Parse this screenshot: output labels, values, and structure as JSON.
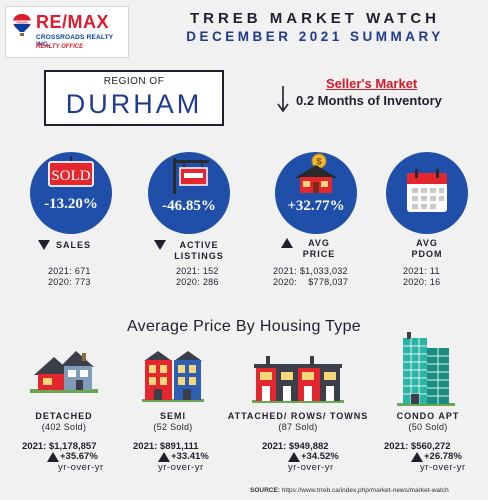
{
  "brand": {
    "name": "RE/MAX",
    "balloon_text": "RE/MAX",
    "office_name": "CROSSROADS REALTY INC.",
    "tagline": "REALTY OFFICE",
    "colors": {
      "red": "#dc1c2e",
      "blue": "#003da5"
    }
  },
  "header": {
    "title": "TRREB MARKET WATCH",
    "subtitle": "DECEMBER 2021 SUMMARY"
  },
  "region": {
    "label": "REGION OF",
    "name": "DURHAM"
  },
  "market": {
    "type": "Seller's Market",
    "inventory_direction": "down",
    "inventory": "0.2 Months of Inventory"
  },
  "stats": [
    {
      "icon": "sold-sign-icon",
      "sign_text": "SOLD",
      "value": "-13.20%",
      "direction": "down",
      "label": "SALES",
      "line_2021": "2021: 671",
      "line_2020": "2020: 773"
    },
    {
      "icon": "listing-sign-icon",
      "value": "-46.85%",
      "direction": "down",
      "label": "ACTIVE LISTINGS",
      "line_2021": "2021: 152",
      "line_2020": "2020: 286"
    },
    {
      "icon": "house-dollar-icon",
      "value": "+32.77%",
      "direction": "up",
      "label": "AVG PRICE",
      "line_2021": "2021: $1,033,032",
      "line_2020": "2020:    $778,037"
    },
    {
      "icon": "calendar-icon",
      "value": "",
      "direction": "none",
      "label": "AVG PDOM",
      "line_2021": "2021: 11",
      "line_2020": "2020: 16"
    }
  ],
  "housing": {
    "title": "Average Price By Housing Type",
    "types": [
      {
        "icon": "detached-house-icon",
        "name": "DETACHED",
        "sold": "(402 Sold)",
        "price": "2021: $1,178,857",
        "change": "+35.67%",
        "yoy": "yr-over-yr"
      },
      {
        "icon": "semi-house-icon",
        "name": "SEMI",
        "sold": "(52 Sold)",
        "price": "2021: $891,111",
        "change": "+33.41%",
        "yoy": "yr-over-yr"
      },
      {
        "icon": "townhouse-icon",
        "name": "ATTACHED/ ROWS/ TOWNS",
        "sold": "(87 Sold)",
        "price": "2021: $949,882",
        "change": "+34.52%",
        "yoy": "yr-over-yr"
      },
      {
        "icon": "condo-tower-icon",
        "name": "CONDO APT",
        "sold": "(50 Sold)",
        "price": "2021: $560,272",
        "change": "+26.78%",
        "yoy": "yr-over-yr"
      }
    ]
  },
  "source": {
    "label": "SOURCE:",
    "url": "https://www.trreb.ca/index.php/market-news/market-watch"
  }
}
